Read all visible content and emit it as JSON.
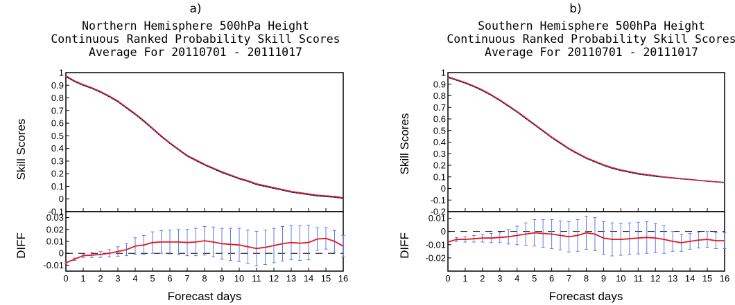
{
  "chart_data": [
    {
      "type": "line",
      "panel_label": "a)",
      "title": [
        "Northern Hemisphere 500hPa Height",
        "Continuous Ranked Probability Skill Scores",
        "Average For 20110701  -  20111017"
      ],
      "xlabel": "Forecast days",
      "ylabel": "Skill Scores",
      "diff_label": "DIFF",
      "xlim": [
        0,
        16
      ],
      "x_ticks": [
        "0",
        "1",
        "2",
        "3",
        "4",
        "5",
        "6",
        "7",
        "8",
        "9",
        "10",
        "11",
        "12",
        "13",
        "14",
        "15",
        "16"
      ],
      "top": {
        "ylim": [
          -0.1,
          1
        ],
        "y_ticks": [
          "1",
          "0.9",
          "0.8",
          "0.7",
          "0.6",
          "0.5",
          "0.4",
          "0.3",
          "0.2",
          "0.1",
          "0",
          "-0.1"
        ],
        "x": [
          0,
          0.5,
          1,
          1.5,
          2,
          2.5,
          3,
          3.5,
          4,
          4.5,
          5,
          5.5,
          6,
          6.5,
          7,
          7.5,
          8,
          8.5,
          9,
          9.5,
          10,
          10.5,
          11,
          11.5,
          12,
          12.5,
          13,
          13.5,
          14,
          14.5,
          15,
          15.5,
          16
        ],
        "series": [
          {
            "color": "#000000",
            "values": [
              0.97,
              0.93,
              0.9,
              0.875,
              0.845,
              0.81,
              0.77,
              0.72,
              0.67,
              0.615,
              0.555,
              0.495,
              0.44,
              0.39,
              0.34,
              0.305,
              0.27,
              0.24,
              0.21,
              0.185,
              0.16,
              0.14,
              0.115,
              0.1,
              0.085,
              0.07,
              0.055,
              0.045,
              0.035,
              0.025,
              0.02,
              0.015,
              0.005
            ]
          },
          {
            "color": "#e8151b",
            "values": [
              0.975,
              0.935,
              0.905,
              0.88,
              0.85,
              0.815,
              0.775,
              0.725,
              0.675,
              0.62,
              0.56,
              0.5,
              0.445,
              0.395,
              0.345,
              0.31,
              0.275,
              0.245,
              0.215,
              0.19,
              0.165,
              0.145,
              0.12,
              0.105,
              0.09,
              0.075,
              0.06,
              0.05,
              0.04,
              0.03,
              0.025,
              0.02,
              0.01
            ]
          },
          {
            "color": "#3a6bdc",
            "values": [
              0.97,
              0.93,
              0.9,
              0.875,
              0.845,
              0.81,
              0.77,
              0.72,
              0.67,
              0.615,
              0.555,
              0.495,
              0.44,
              0.39,
              0.34,
              0.305,
              0.27,
              0.24,
              0.21,
              0.185,
              0.16,
              0.14,
              0.115,
              0.1,
              0.085,
              0.07,
              0.055,
              0.045,
              0.035,
              0.025,
              0.02,
              0.015,
              0.005
            ]
          }
        ]
      },
      "bottom": {
        "ylim": [
          -0.015,
          0.035
        ],
        "y_ticks": [
          "0.03",
          "0.02",
          "0.01",
          "0",
          "-0.01"
        ],
        "y_tick_values": [
          0.03,
          0.02,
          0.01,
          0,
          -0.01
        ],
        "x": [
          0,
          0.5,
          1,
          1.5,
          2,
          2.5,
          3,
          3.5,
          4,
          4.5,
          5,
          5.5,
          6,
          6.5,
          7,
          7.5,
          8,
          8.5,
          9,
          9.5,
          10,
          10.5,
          11,
          11.5,
          12,
          12.5,
          13,
          13.5,
          14,
          14.5,
          15,
          15.5,
          16
        ],
        "values": [
          -0.008,
          -0.005,
          -0.002,
          -0.0015,
          -0.001,
          0.0,
          0.0015,
          0.003,
          0.006,
          0.007,
          0.009,
          0.0095,
          0.0095,
          0.0095,
          0.009,
          0.0095,
          0.0105,
          0.0095,
          0.008,
          0.0075,
          0.007,
          0.0055,
          0.004,
          0.005,
          0.0065,
          0.008,
          0.009,
          0.0085,
          0.009,
          0.012,
          0.0125,
          0.01,
          0.006
        ],
        "err": [
          0.0008,
          0.001,
          0.0015,
          0.002,
          0.0025,
          0.003,
          0.004,
          0.005,
          0.007,
          0.008,
          0.009,
          0.0095,
          0.01,
          0.0105,
          0.011,
          0.0115,
          0.012,
          0.0125,
          0.013,
          0.0135,
          0.014,
          0.014,
          0.0145,
          0.0145,
          0.0145,
          0.0145,
          0.0145,
          0.0145,
          0.0145,
          0.0095,
          0.009,
          0.009,
          0.009
        ]
      }
    },
    {
      "type": "line",
      "panel_label": "b)",
      "title": [
        "Southern Hemisphere 500hPa Height",
        "Continuous Ranked Probability Skill Scores",
        "Average For 20110701  -  20111017"
      ],
      "xlabel": "Forecast days",
      "ylabel": "Skill Scores",
      "diff_label": "DIFF",
      "xlim": [
        0,
        16
      ],
      "x_ticks": [
        "0",
        "1",
        "2",
        "3",
        "4",
        "5",
        "6",
        "7",
        "8",
        "9",
        "10",
        "11",
        "12",
        "13",
        "14",
        "15",
        "16"
      ],
      "top": {
        "ylim": [
          -0.2,
          1
        ],
        "y_ticks": [
          "1",
          "0.9",
          "0.8",
          "0.7",
          "0.6",
          "0.5",
          "0.4",
          "0.3",
          "0.2",
          "0.1",
          "0",
          "-0.1",
          "-0.2"
        ],
        "x": [
          0,
          0.5,
          1,
          1.5,
          2,
          2.5,
          3,
          3.5,
          4,
          4.5,
          5,
          5.5,
          6,
          6.5,
          7,
          7.5,
          8,
          8.5,
          9,
          9.5,
          10,
          10.5,
          11,
          11.5,
          12,
          12.5,
          13,
          13.5,
          14,
          14.5,
          15,
          15.5,
          16
        ],
        "series": [
          {
            "color": "#000000",
            "values": [
              0.96,
              0.935,
              0.91,
              0.88,
              0.845,
              0.805,
              0.76,
              0.71,
              0.66,
              0.605,
              0.55,
              0.495,
              0.44,
              0.39,
              0.34,
              0.3,
              0.26,
              0.23,
              0.2,
              0.175,
              0.155,
              0.14,
              0.125,
              0.115,
              0.105,
              0.098,
              0.09,
              0.083,
              0.077,
              0.07,
              0.063,
              0.057,
              0.05
            ]
          },
          {
            "color": "#e8151b",
            "values": [
              0.965,
              0.94,
              0.915,
              0.885,
              0.85,
              0.81,
              0.765,
              0.715,
              0.665,
              0.61,
              0.555,
              0.5,
              0.445,
              0.395,
              0.345,
              0.305,
              0.265,
              0.235,
              0.205,
              0.18,
              0.16,
              0.145,
              0.13,
              0.12,
              0.11,
              0.1,
              0.092,
              0.085,
              0.078,
              0.07,
              0.064,
              0.058,
              0.052
            ]
          },
          {
            "color": "#3a6bdc",
            "values": [
              0.96,
              0.935,
              0.91,
              0.88,
              0.845,
              0.805,
              0.76,
              0.71,
              0.66,
              0.605,
              0.55,
              0.495,
              0.44,
              0.39,
              0.34,
              0.3,
              0.26,
              0.23,
              0.2,
              0.175,
              0.155,
              0.14,
              0.125,
              0.115,
              0.105,
              0.098,
              0.09,
              0.083,
              0.077,
              0.07,
              0.063,
              0.057,
              0.05
            ]
          }
        ]
      },
      "bottom": {
        "ylim": [
          -0.03,
          0.015
        ],
        "y_ticks": [
          "0.01",
          "0",
          "-0.01",
          "-0.02"
        ],
        "y_tick_values": [
          0.01,
          0,
          -0.01,
          -0.02
        ],
        "x": [
          0,
          0.5,
          1,
          1.5,
          2,
          2.5,
          3,
          3.5,
          4,
          4.5,
          5,
          5.5,
          6,
          6.5,
          7,
          7.5,
          8,
          8.5,
          9,
          9.5,
          10,
          10.5,
          11,
          11.5,
          12,
          12.5,
          13,
          13.5,
          14,
          14.5,
          15,
          15.5,
          16
        ],
        "values": [
          -0.008,
          -0.006,
          -0.006,
          -0.0055,
          -0.005,
          -0.005,
          -0.0045,
          -0.004,
          -0.003,
          -0.002,
          -0.001,
          -0.0015,
          -0.002,
          -0.003,
          -0.004,
          -0.003,
          -0.001,
          -0.002,
          -0.005,
          -0.006,
          -0.006,
          -0.0055,
          -0.005,
          -0.0045,
          -0.005,
          -0.006,
          -0.0075,
          -0.0085,
          -0.0075,
          -0.0065,
          -0.006,
          -0.007,
          -0.007
        ],
        "err": [
          0.0,
          0.0015,
          0.002,
          0.0025,
          0.003,
          0.0035,
          0.004,
          0.0055,
          0.007,
          0.0085,
          0.01,
          0.0105,
          0.011,
          0.011,
          0.0115,
          0.012,
          0.0125,
          0.0125,
          0.0125,
          0.0125,
          0.012,
          0.012,
          0.012,
          0.012,
          0.011,
          0.0105,
          0.0075,
          0.0065,
          0.006,
          0.006,
          0.006,
          0.006,
          0.006
        ]
      }
    }
  ]
}
